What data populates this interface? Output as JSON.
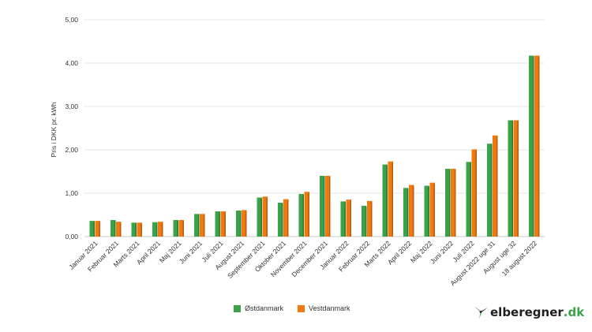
{
  "chart_data": {
    "type": "bar",
    "ylabel": "Pris i DKK pr. kWh",
    "ylim": [
      0,
      5
    ],
    "yticks": [
      "0,00",
      "1,00",
      "2,00",
      "3,00",
      "4,00",
      "5,00"
    ],
    "grid": true,
    "legend_position": "bottom",
    "categories": [
      "Januar 2021",
      "Februar 2021",
      "Marts 2021",
      "April 2021",
      "Maj 2021",
      "Juni 2021",
      "Juli 2021",
      "August 2021",
      "September 2021",
      "Oktober 2021",
      "November 2021",
      "December 2021",
      "Januar 2022",
      "Februar 2022",
      "Marts 2022",
      "April 2022",
      "Maj 2022",
      "Juni 2022",
      "Juli 2022",
      "August 2022 uge 31",
      "August uge 32",
      "18 august 2022"
    ],
    "series": [
      {
        "name": "Østdanmark",
        "color": "#3aa34a",
        "values": [
          0.36,
          0.38,
          0.32,
          0.33,
          0.38,
          0.52,
          0.58,
          0.6,
          0.9,
          0.78,
          0.98,
          1.4,
          0.81,
          0.71,
          1.66,
          1.12,
          1.17,
          1.56,
          1.72,
          2.14,
          2.68,
          4.17
        ]
      },
      {
        "name": "Vestdanmark",
        "color": "#f07a10",
        "values": [
          0.36,
          0.34,
          0.32,
          0.34,
          0.38,
          0.52,
          0.58,
          0.61,
          0.92,
          0.86,
          1.03,
          1.4,
          0.85,
          0.82,
          1.73,
          1.19,
          1.24,
          1.56,
          2.01,
          2.33,
          2.68,
          4.17
        ]
      }
    ]
  },
  "logo": {
    "text_dark": "elberegner",
    "text_accent": ".dk",
    "accent_color": "#3aa34a",
    "icon": "wind-turbine-icon"
  }
}
